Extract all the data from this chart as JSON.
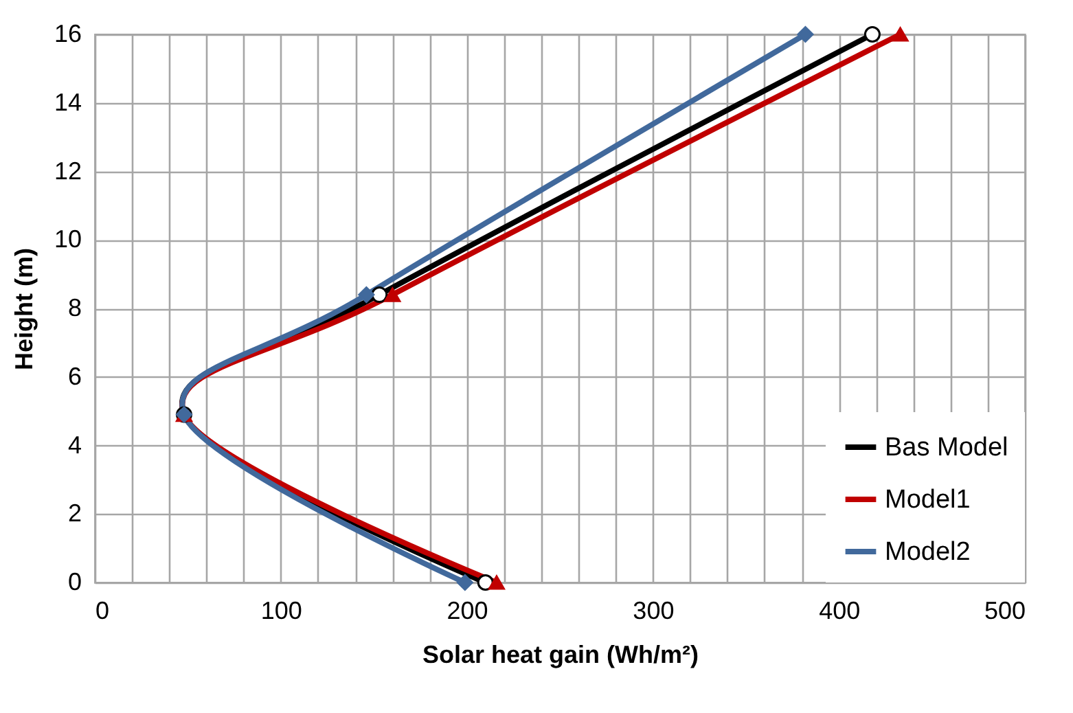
{
  "chart_data": {
    "type": "line",
    "xlabel": "Solar heat gain (Wh/m²)",
    "ylabel": "Height (m)",
    "xlim": [
      0,
      500
    ],
    "xticks": [
      0,
      {
        "value": 20,
        "label": null
      },
      {
        "value": 40,
        "label": null
      },
      {
        "value": 60,
        "label": null
      },
      {
        "value": 80,
        "label": null
      },
      100,
      {
        "value": 120,
        "label": null
      },
      {
        "value": 140,
        "label": null
      },
      {
        "value": 160,
        "label": null
      },
      {
        "value": 180,
        "label": null
      },
      200,
      {
        "value": 220,
        "label": null
      },
      {
        "value": 240,
        "label": null
      },
      {
        "value": 260,
        "label": null
      },
      {
        "value": 280,
        "label": null
      },
      300,
      {
        "value": 320,
        "label": null
      },
      {
        "value": 340,
        "label": null
      },
      {
        "value": 360,
        "label": null
      },
      {
        "value": 380,
        "label": null
      },
      400,
      {
        "value": 420,
        "label": null
      },
      {
        "value": 440,
        "label": null
      },
      {
        "value": 460,
        "label": null
      },
      {
        "value": 480,
        "label": null
      },
      500
    ],
    "ylim": [
      0,
      16
    ],
    "yticks": [
      0,
      2,
      4,
      6,
      8,
      10,
      12,
      14,
      16
    ],
    "grid": true,
    "legend": "bottom right",
    "line_style": "solid",
    "series": [
      {
        "name": "Bas Model",
        "color": "#000000",
        "marker": "circle",
        "x": [
          210,
          48,
          153,
          418
        ],
        "values": [
          0,
          4.9,
          8.4,
          16
        ]
      },
      {
        "name": "Model1",
        "color": "#c00000",
        "marker": "triangle",
        "x": [
          216,
          48,
          160,
          433
        ],
        "values": [
          0,
          4.9,
          8.4,
          16
        ]
      },
      {
        "name": "Model2",
        "color": "#41699c",
        "marker": "diamond",
        "x": [
          199,
          48,
          146,
          382
        ],
        "values": [
          0,
          4.9,
          8.4,
          16
        ]
      }
    ]
  }
}
